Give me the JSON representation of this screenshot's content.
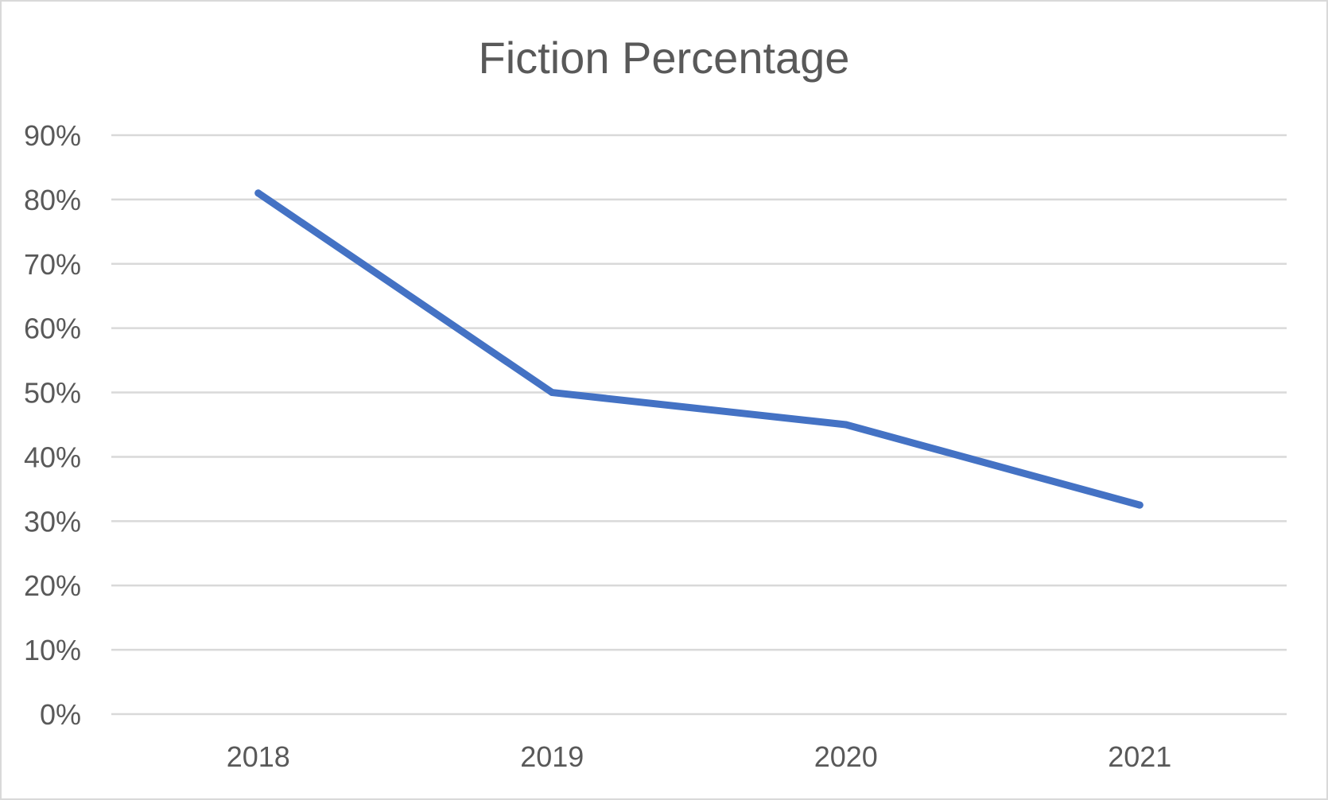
{
  "chart_data": {
    "type": "line",
    "title": "Fiction Percentage",
    "xlabel": "",
    "ylabel": "",
    "categories": [
      "2018",
      "2019",
      "2020",
      "2021"
    ],
    "series": [
      {
        "color": "#4472c4",
        "values": [
          0.81,
          0.5,
          0.45,
          0.325
        ]
      }
    ],
    "ylim": [
      0,
      0.9
    ],
    "y_ticks": [
      0,
      0.1,
      0.2,
      0.3,
      0.4,
      0.5,
      0.6,
      0.7,
      0.8,
      0.9
    ],
    "y_tick_labels": [
      "0%",
      "10%",
      "20%",
      "30%",
      "40%",
      "50%",
      "60%",
      "70%",
      "80%",
      "90%"
    ],
    "grid": true,
    "legend": "none",
    "gridline_color": "#d9d9d9"
  }
}
